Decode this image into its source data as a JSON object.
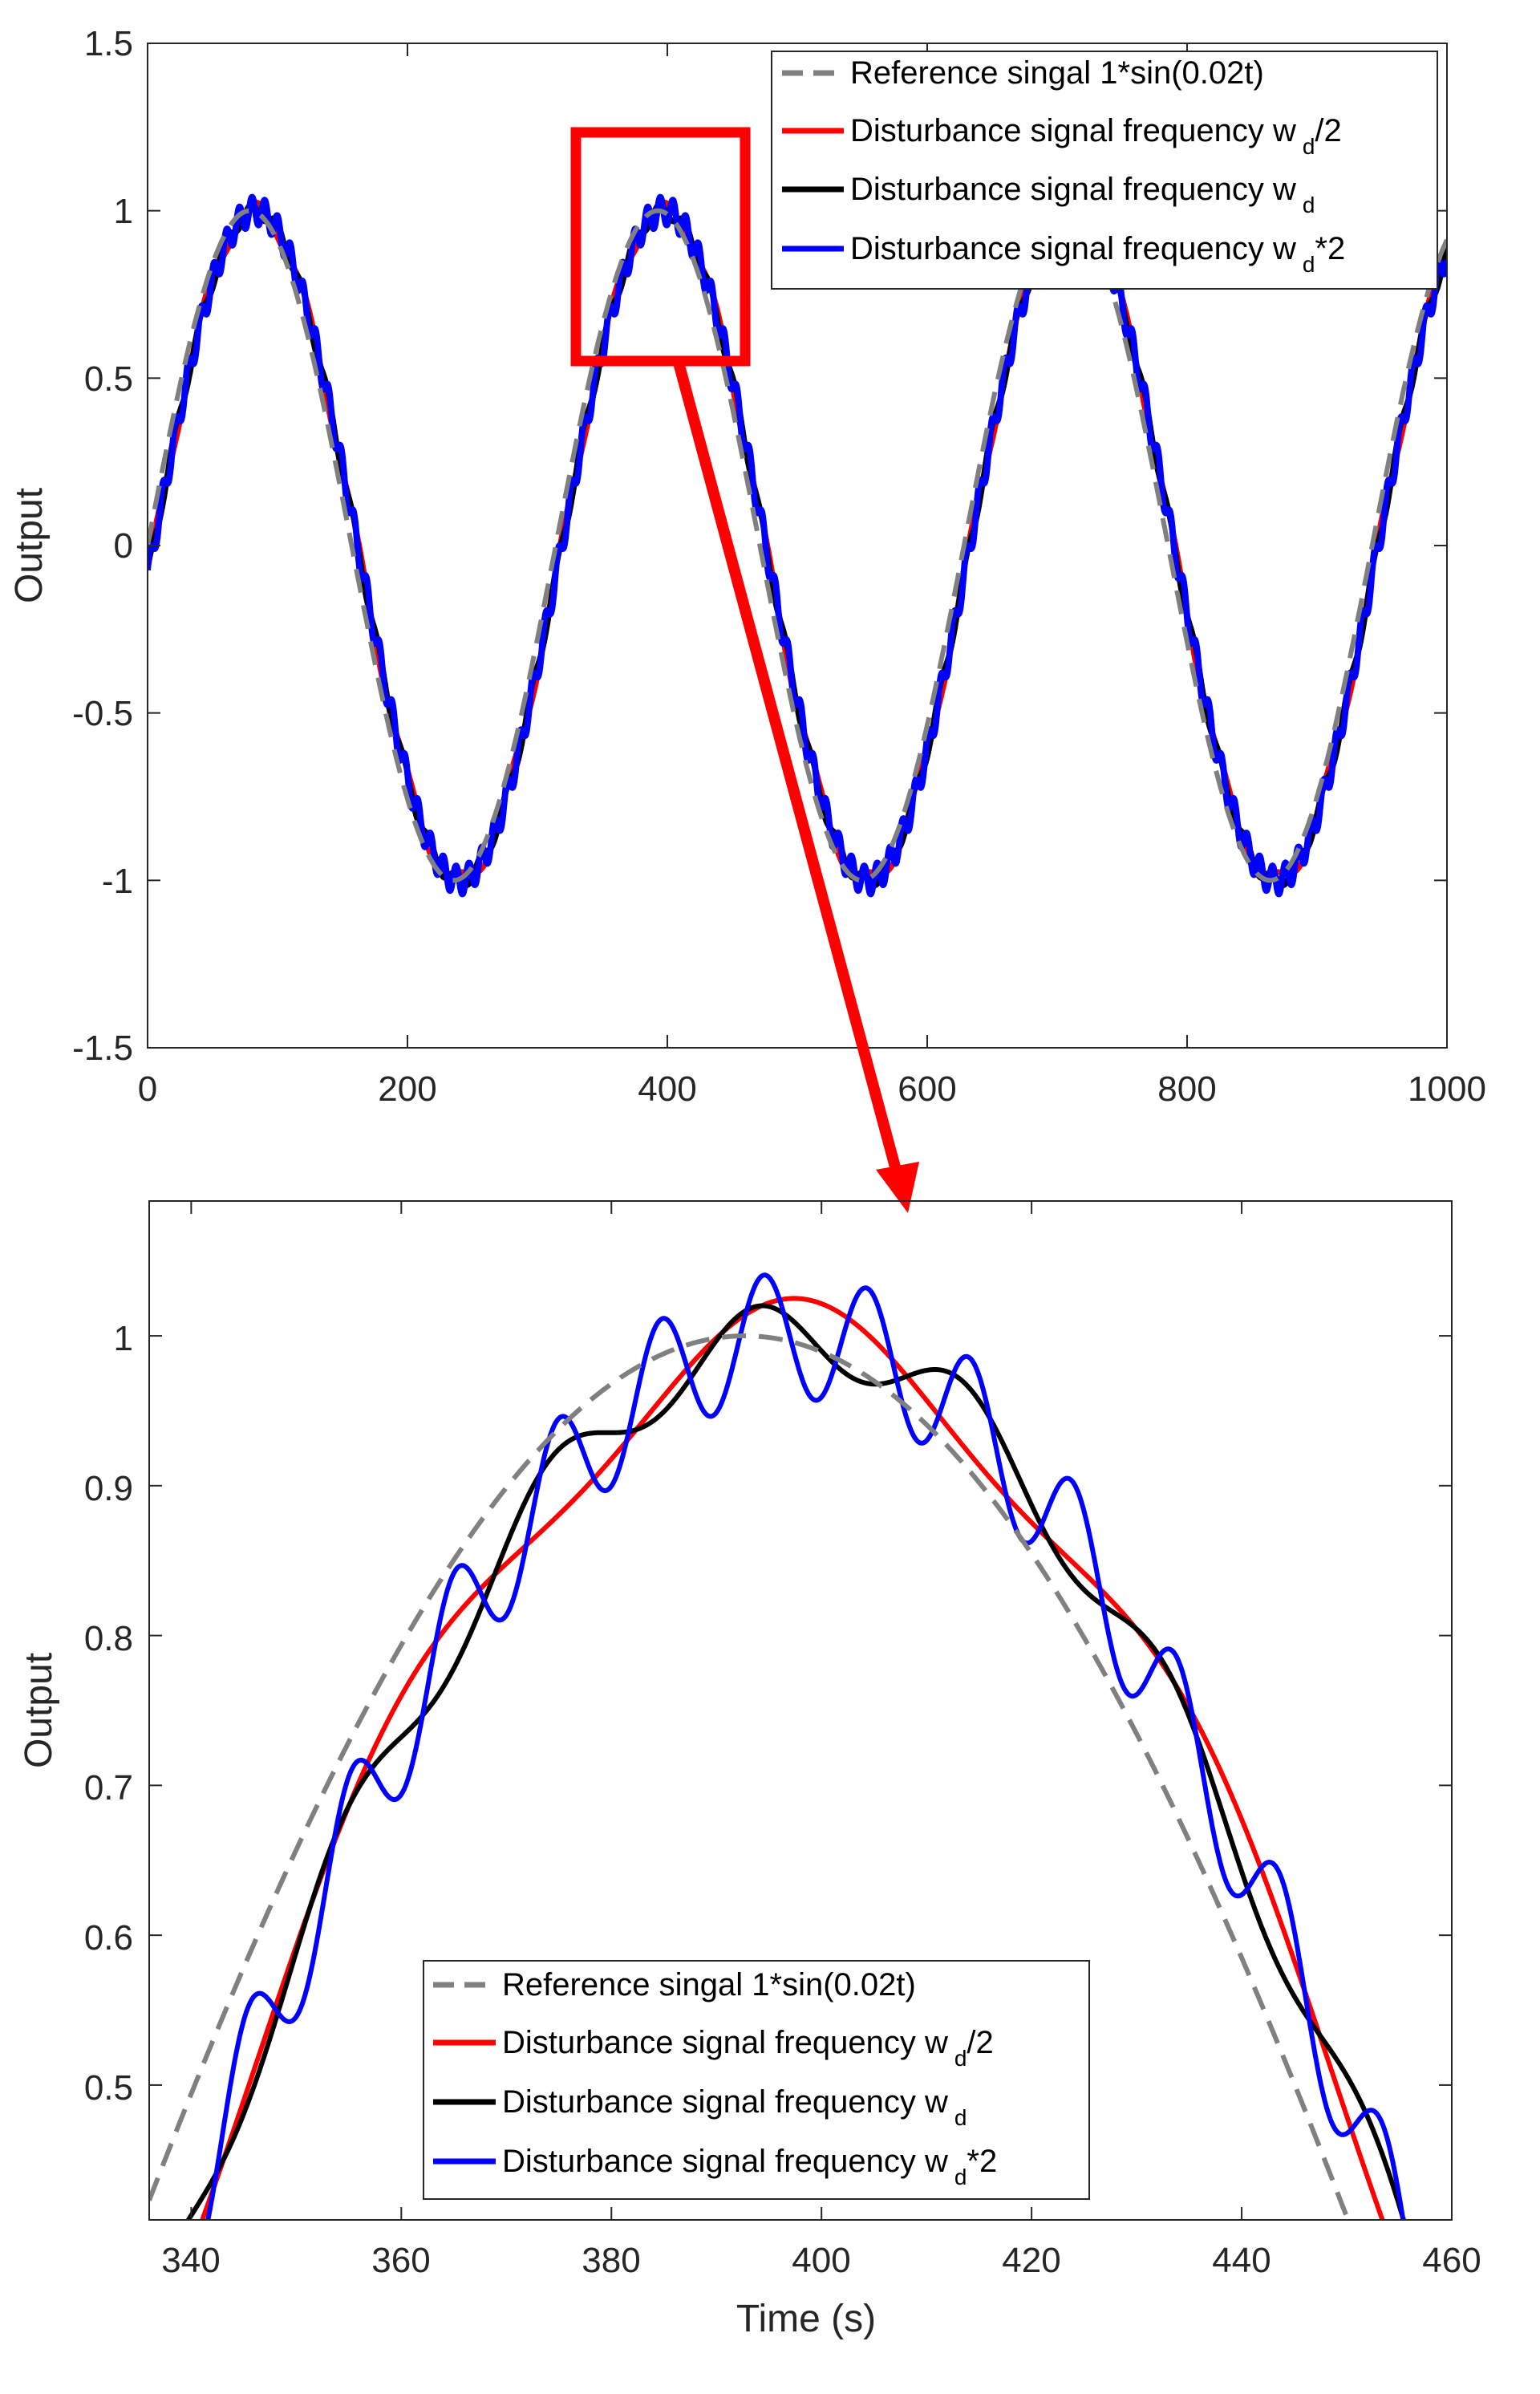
{
  "chart_data": [
    {
      "type": "line",
      "ylabel": "Output",
      "xlabel": "",
      "xlim": [
        0,
        1000
      ],
      "ylim": [
        -1.5,
        1.5
      ],
      "xticks": [
        "0",
        "200",
        "400",
        "600",
        "800",
        "1000"
      ],
      "yticks": [
        "1.5",
        "1",
        "0.5",
        "0",
        "-0.5",
        "-1",
        "-1.5"
      ],
      "grid": false,
      "legend_position": "top-right",
      "series": [
        {
          "name": "Reference singal 1*sin(0.02t)",
          "color": "#808080",
          "style": "dashed",
          "amplitude": 1,
          "omega": 0.02
        },
        {
          "name": "Disturbance signal frequency w_d/2",
          "color": "#ff0000",
          "style": "solid"
        },
        {
          "name": "Disturbance signal frequency w_d",
          "color": "#000000",
          "style": "solid"
        },
        {
          "name": "Disturbance signal frequency w_d*2",
          "color": "#0000ff",
          "style": "solid"
        }
      ],
      "annotation": {
        "type": "zoom-box",
        "x_range": [
          330,
          460
        ],
        "y_range": [
          0.54,
          1.22
        ],
        "color": "#ff0000",
        "points_to": "lower-panel"
      }
    },
    {
      "type": "line",
      "ylabel": "Output",
      "xlabel": "Time (s)",
      "xlim": [
        336,
        460
      ],
      "ylim": [
        0.41,
        1.09
      ],
      "xticks": [
        "340",
        "360",
        "380",
        "400",
        "420",
        "440",
        "460"
      ],
      "yticks": [
        "1",
        "0.9",
        "0.8",
        "0.7",
        "0.6",
        "0.5"
      ],
      "grid": false,
      "legend_position": "bottom-center",
      "series": [
        {
          "name": "Reference singal 1*sin(0.02t)",
          "color": "#808080",
          "style": "dashed"
        },
        {
          "name": "Disturbance signal frequency w_d/2",
          "color": "#ff0000",
          "style": "solid"
        },
        {
          "name": "Disturbance signal frequency w_d",
          "color": "#000000",
          "style": "solid"
        },
        {
          "name": "Disturbance signal frequency w_d*2",
          "color": "#0000ff",
          "style": "solid"
        }
      ]
    }
  ],
  "legend": {
    "items": [
      {
        "prefix": "Reference singal 1*sin(0.02t)",
        "sub": "",
        "suffix": ""
      },
      {
        "prefix": "Disturbance signal frequency w",
        "sub": "d",
        "suffix": "/2"
      },
      {
        "prefix": "Disturbance signal frequency w",
        "sub": "d",
        "suffix": ""
      },
      {
        "prefix": "Disturbance signal frequency w",
        "sub": "d",
        "suffix": "*2"
      }
    ]
  }
}
